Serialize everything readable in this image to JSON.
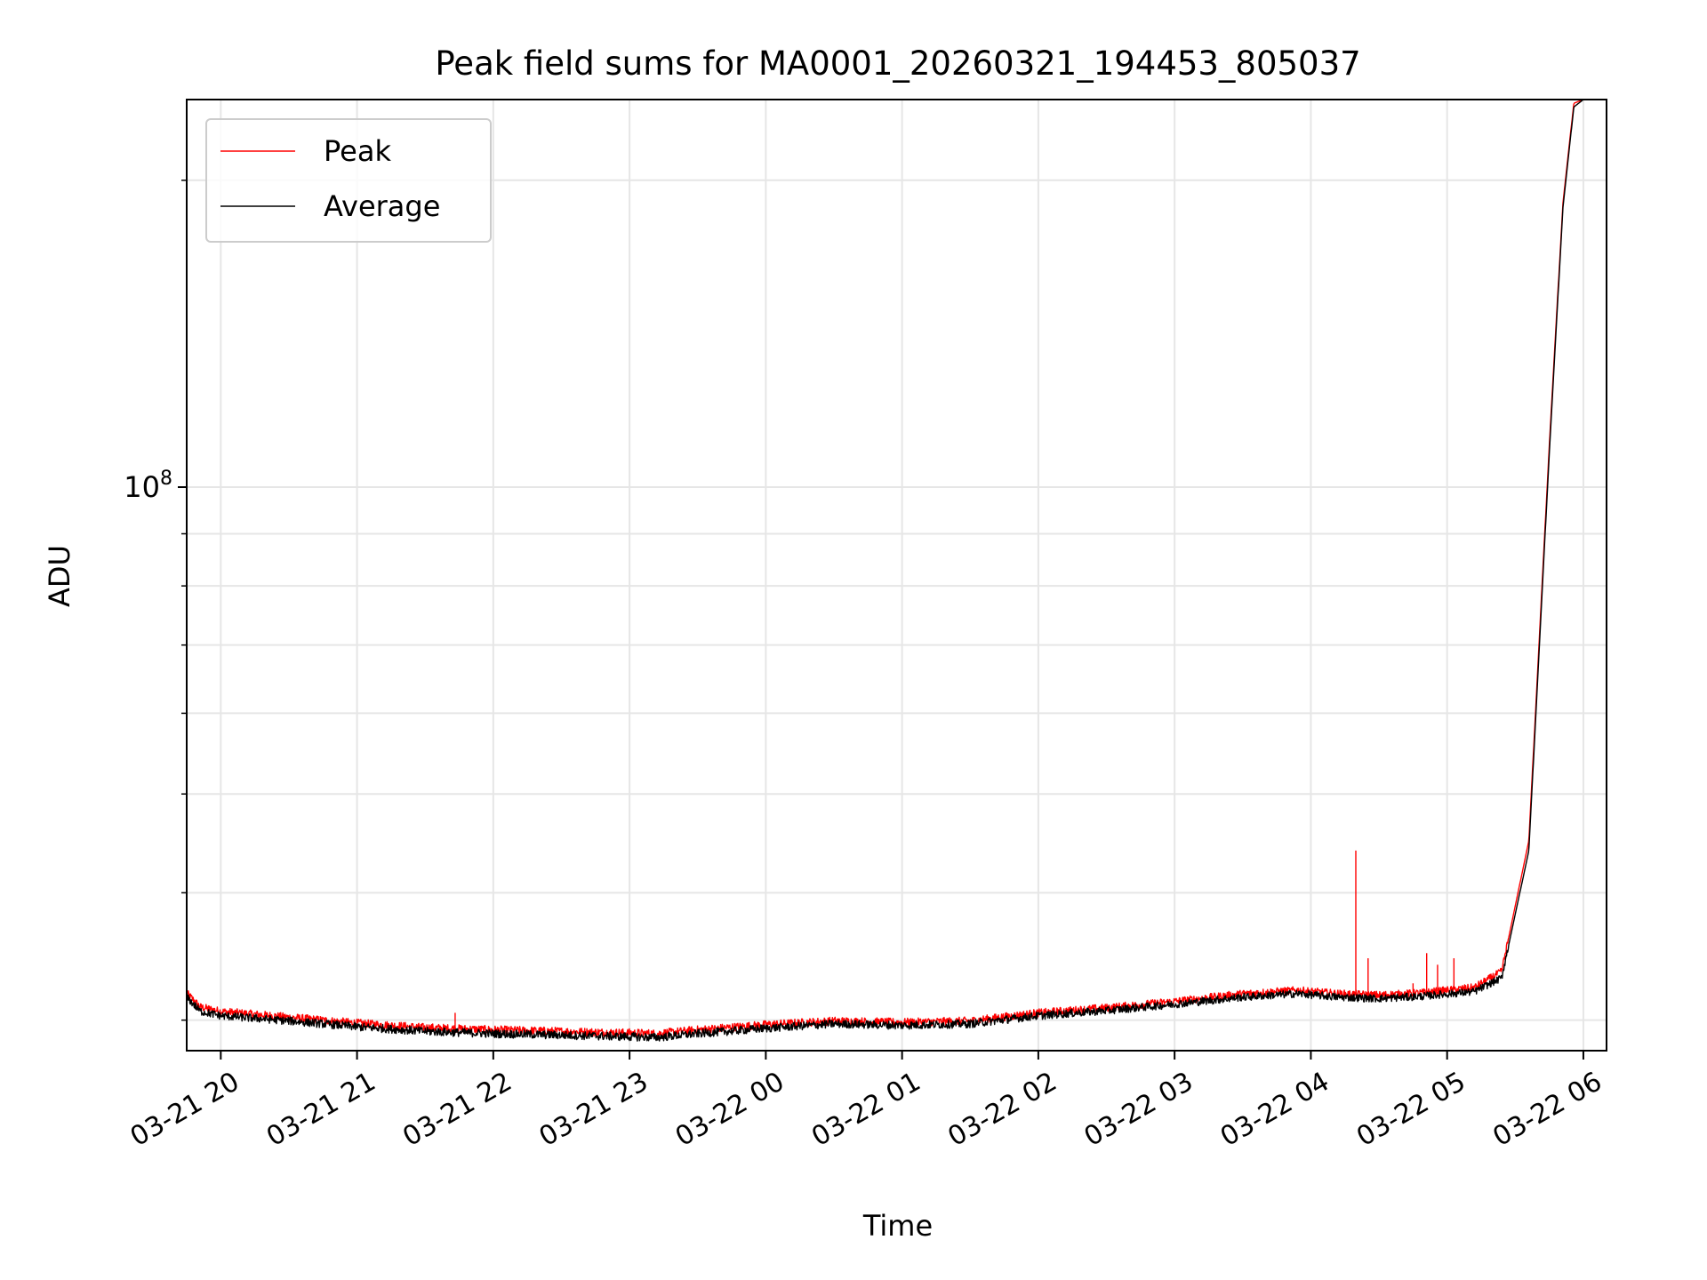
{
  "chart_data": {
    "type": "line",
    "title": "Peak field sums for MA0001_20260321_194453_805037",
    "xlabel": "Time",
    "ylabel": "ADU",
    "yscale": "log",
    "grid": true,
    "grid_minor": true,
    "legend_position": "upper left",
    "x_unit": "hours since 03-21 20:00",
    "xlim": [
      -0.25,
      10.17
    ],
    "ylim": [
      28000000,
      240000000
    ],
    "x_ticks": [
      0,
      1,
      2,
      3,
      4,
      5,
      6,
      7,
      8,
      9,
      10
    ],
    "x_tick_labels": [
      "03-21 20",
      "03-21 21",
      "03-21 22",
      "03-21 23",
      "03-22 00",
      "03-22 01",
      "03-22 02",
      "03-22 03",
      "03-22 04",
      "03-22 05",
      "03-22 06"
    ],
    "y_major_ticks": [
      100000000
    ],
    "y_major_tick_labels": [
      {
        "base": "10",
        "exp": "8"
      }
    ],
    "y_minor_ticks": [
      30000000,
      40000000,
      50000000,
      60000000,
      70000000,
      80000000,
      90000000,
      200000000
    ],
    "series": [
      {
        "name": "Peak",
        "color": "#ff0000",
        "points": [
          [
            -0.25,
            31.9
          ],
          [
            -0.15,
            30.9
          ],
          [
            0.0,
            30.6
          ],
          [
            0.5,
            30.2
          ],
          [
            1.0,
            29.8
          ],
          [
            1.5,
            29.5
          ],
          [
            2.0,
            29.35
          ],
          [
            2.5,
            29.25
          ],
          [
            3.0,
            29.15
          ],
          [
            3.2,
            29.1
          ],
          [
            3.5,
            29.35
          ],
          [
            4.0,
            29.7
          ],
          [
            4.5,
            29.95
          ],
          [
            5.0,
            29.85
          ],
          [
            5.5,
            29.95
          ],
          [
            6.0,
            30.5
          ],
          [
            6.5,
            30.85
          ],
          [
            7.0,
            31.3
          ],
          [
            7.5,
            31.85
          ],
          [
            7.9,
            32.1
          ],
          [
            8.2,
            31.85
          ],
          [
            8.5,
            31.75
          ],
          [
            8.8,
            31.9
          ],
          [
            9.2,
            32.3
          ],
          [
            9.4,
            33.5
          ],
          [
            9.6,
            45.0
          ],
          [
            9.75,
            110.0
          ],
          [
            9.85,
            190.0
          ],
          [
            9.93,
            238.0
          ],
          [
            10.0,
            240.0
          ]
        ],
        "spikes": [
          [
            1.72,
            30.5
          ],
          [
            8.33,
            44.0
          ],
          [
            8.42,
            34.5
          ],
          [
            8.75,
            32.6
          ],
          [
            8.85,
            34.9
          ],
          [
            8.93,
            34.0
          ],
          [
            9.05,
            34.5
          ]
        ]
      },
      {
        "name": "Average",
        "color": "#000000",
        "points": [
          [
            -0.25,
            31.6
          ],
          [
            -0.15,
            30.6
          ],
          [
            0.0,
            30.3
          ],
          [
            0.5,
            29.95
          ],
          [
            1.0,
            29.55
          ],
          [
            1.5,
            29.25
          ],
          [
            2.0,
            29.1
          ],
          [
            2.5,
            29.0
          ],
          [
            3.0,
            28.9
          ],
          [
            3.2,
            28.85
          ],
          [
            3.5,
            29.1
          ],
          [
            4.0,
            29.45
          ],
          [
            4.5,
            29.75
          ],
          [
            5.0,
            29.65
          ],
          [
            5.5,
            29.75
          ],
          [
            6.0,
            30.3
          ],
          [
            6.5,
            30.65
          ],
          [
            7.0,
            31.1
          ],
          [
            7.5,
            31.6
          ],
          [
            7.9,
            31.85
          ],
          [
            8.2,
            31.6
          ],
          [
            8.5,
            31.5
          ],
          [
            8.8,
            31.65
          ],
          [
            9.2,
            32.0
          ],
          [
            9.4,
            33.0
          ],
          [
            9.6,
            44.0
          ],
          [
            9.75,
            108.0
          ],
          [
            9.85,
            188.0
          ],
          [
            9.93,
            236.0
          ],
          [
            10.0,
            240.0
          ]
        ],
        "spikes": []
      }
    ],
    "y_value_unit_multiplier": 1000000
  }
}
